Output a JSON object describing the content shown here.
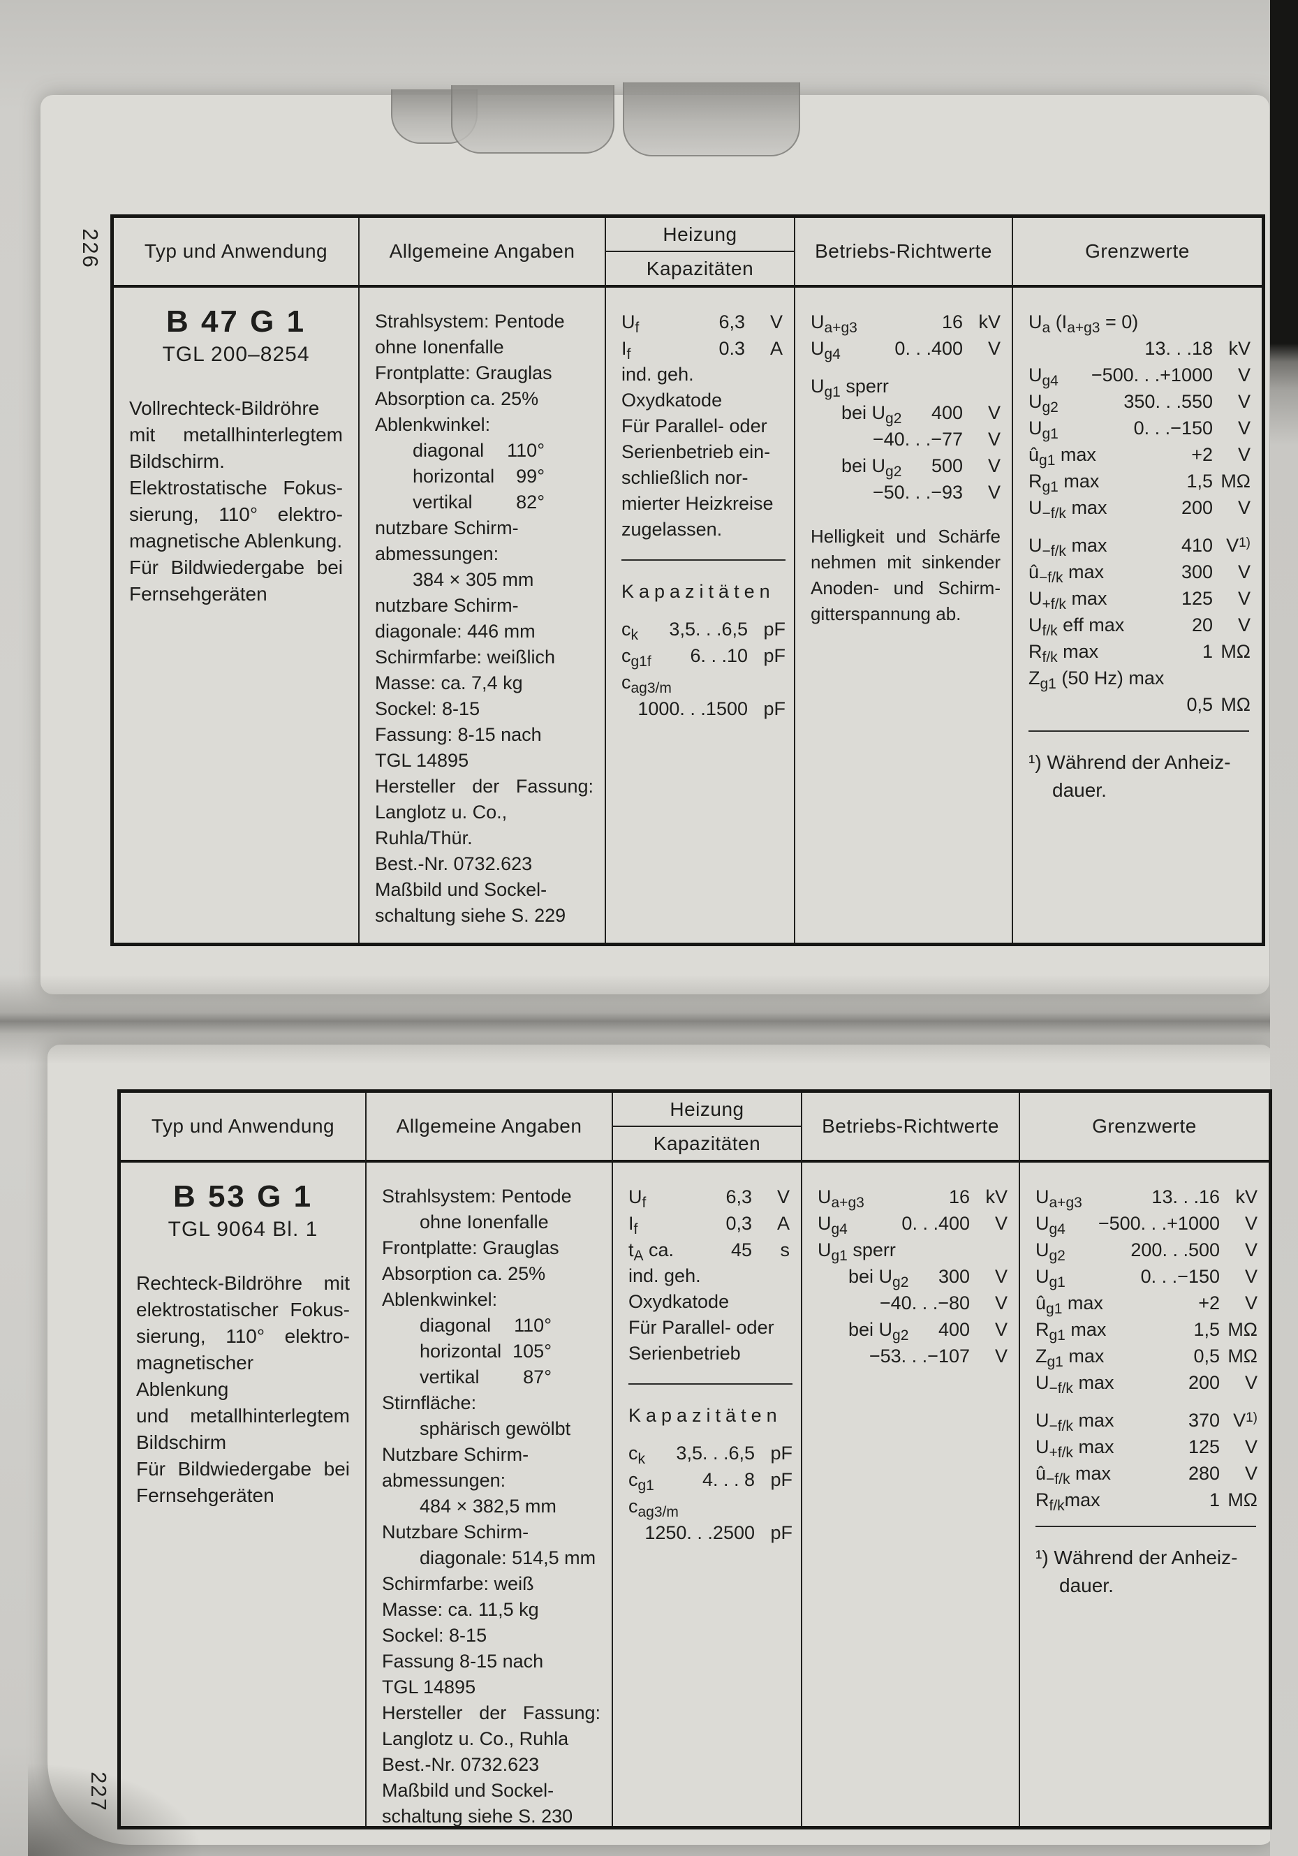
{
  "pages": [
    {
      "page_number": "226",
      "headers": {
        "col1": "Typ und Anwendung",
        "col2": "Allgemeine Angaben",
        "col3_top": "Heizung",
        "col3_bottom": "Kapazitäten",
        "col4": "Betriebs-Richtwerte",
        "col5": "Grenzwerte"
      },
      "col1": {
        "name": "B 47 G 1",
        "standard": "TGL 200–8254",
        "description": [
          {
            "t": "Vollrechteck-Bildröhre",
            "j": 1
          },
          {
            "t": "mit metallhinterlegtem",
            "j": 1
          },
          {
            "t": "Bildschirm."
          },
          {
            "t": "Elektrostatische Fokus-",
            "j": 1
          },
          {
            "t": "sierung, 110° elektro-",
            "j": 1
          },
          {
            "t": "magnetische Ablenkung."
          },
          {
            "t": "Für Bildwiedergabe bei",
            "j": 1
          },
          {
            "t": "Fernsehgeräten"
          }
        ]
      },
      "col2": {
        "lines": [
          {
            "t": "Strahlsystem: Pentode"
          },
          {
            "t": "ohne Ionenfalle"
          },
          {
            "t": "Frontplatte: Grauglas"
          },
          {
            "t": "Absorption ca. 25%"
          },
          {
            "t": "Ablenkwinkel:"
          },
          {
            "t": "diagonal",
            "v": "110°",
            "indent": 1
          },
          {
            "t": "horizontal",
            "v": "99°",
            "indent": 1
          },
          {
            "t": "vertikal",
            "v": "82°",
            "indent": 1
          },
          {
            "t": "nutzbare Schirm-"
          },
          {
            "t": "abmessungen:"
          },
          {
            "t": "384 × 305 mm",
            "indent": 1
          },
          {
            "t": "nutzbare Schirm-"
          },
          {
            "t": "diagonale: 446 mm"
          },
          {
            "t": "Schirmfarbe: weißlich"
          },
          {
            "t": "Masse: ca. 7,4 kg"
          },
          {
            "t": "Sockel: 8-15"
          },
          {
            "t": "Fassung: 8-15 nach"
          },
          {
            "t": "TGL 14895"
          },
          {
            "t": "Hersteller der Fassung:",
            "j": 1
          },
          {
            "t": "Langlotz u. Co.,"
          },
          {
            "t": "Ruhla/Thür."
          },
          {
            "t": "Best.-Nr. 0732.623"
          },
          {
            "t": "Maßbild und Sockel-"
          },
          {
            "t": "schaltung siehe S. 229"
          }
        ]
      },
      "col3": {
        "rows": [
          {
            "l": "U",
            "s": "f",
            "v": "6,3",
            "u": "V"
          },
          {
            "l": "I",
            "s": "f",
            "v": "0.3",
            "u": "A"
          }
        ],
        "lines": [
          {
            "t": "ind. geh."
          },
          {
            "t": "Oxydkatode"
          },
          {
            "t": "Für Parallel- oder"
          },
          {
            "t": "Serienbetrieb ein-"
          },
          {
            "t": "schließlich nor-"
          },
          {
            "t": "mierter Heizkreise"
          },
          {
            "t": "zugelassen."
          }
        ],
        "cap_title": "Kapazitäten",
        "cap_rows": [
          {
            "l": "c",
            "s": "k",
            "v": "3,5. . .6,5",
            "u": "pF"
          },
          {
            "l": "c",
            "s": "g1f",
            "v": "6. . .10",
            "u": "pF"
          },
          {
            "l": "c",
            "s": "ag3/m"
          },
          {
            "v": "1000. . .1500",
            "u": "pF"
          }
        ]
      },
      "col4": {
        "rows": [
          {
            "l": "U",
            "s": "a+g3",
            "v": "16",
            "u": "kV"
          },
          {
            "l": "U",
            "s": "g4",
            "v": "0. . .400",
            "u": "V"
          },
          {
            "l": "U",
            "s": "g1",
            "l2": " sperr",
            "gap": 1
          },
          {
            "l": "bei U",
            "s": "g2",
            "v": "400",
            "u": "V",
            "indent": 1
          },
          {
            "v": "−40. . .−77",
            "u": "V"
          },
          {
            "l": "bei U",
            "s": "g2",
            "v": "500",
            "u": "V",
            "indent": 1
          },
          {
            "v": "−50. . .−93",
            "u": "V"
          }
        ],
        "notes": [
          {
            "t": "Helligkeit und Schärfe",
            "j": 1,
            "gap": 1
          },
          {
            "t": "nehmen mit sinkender",
            "j": 1
          },
          {
            "t": "Anoden- und Schirm-",
            "j": 1
          },
          {
            "t": "gitterspannung ab."
          }
        ]
      },
      "col5": {
        "rows": [
          {
            "l": "U",
            "s": "a",
            "l2": " (I",
            "s2": "a+g3",
            "l3": " = 0)"
          },
          {
            "v": "13. . .18",
            "u": "kV"
          },
          {
            "l": "U",
            "s": "g4",
            "v": "−500. . .+1000",
            "u": "V"
          },
          {
            "l": "U",
            "s": "g2",
            "v": "350. . .550",
            "u": "V"
          },
          {
            "l": "U",
            "s": "g1",
            "v": "0. . .−150",
            "u": "V"
          },
          {
            "l": "û",
            "s": "g1",
            "l2": " max",
            "v": "+2",
            "u": "V"
          },
          {
            "l": "R",
            "s": "g1",
            "l2": " max",
            "v": "1,5",
            "u": "MΩ"
          },
          {
            "l": "U",
            "s": "−f/k",
            "l2": " max",
            "v": "200",
            "u": "V"
          },
          {
            "l": "U",
            "s": "−f/k",
            "l2": " max",
            "v": "410",
            "u": "V",
            "up": "1)",
            "gap": 1
          },
          {
            "l": "û",
            "s": "−f/k",
            "l2": " max",
            "v": "300",
            "u": "V"
          },
          {
            "l": "U",
            "s": "+f/k",
            "l2": " max",
            "v": "125",
            "u": "V"
          },
          {
            "l": "U",
            "s": "f/k",
            "l2": " eff max",
            "v": "20",
            "u": "V"
          },
          {
            "l": "R",
            "s": "f/k",
            "l2": " max",
            "v": "1",
            "u": "MΩ"
          },
          {
            "l": "Z",
            "s": "g1",
            "l2": " (50 Hz) max"
          },
          {
            "v": "0,5",
            "u": "MΩ"
          }
        ],
        "footnote": [
          {
            "t": "¹) Während der Anheiz-"
          },
          {
            "t": "dauer.",
            "indent": 1
          }
        ]
      }
    },
    {
      "page_number": "227",
      "headers": {
        "col1": "Typ und Anwendung",
        "col2": "Allgemeine Angaben",
        "col3_top": "Heizung",
        "col3_bottom": "Kapazitäten",
        "col4": "Betriebs-Richtwerte",
        "col5": "Grenzwerte"
      },
      "col1": {
        "name": "B 53 G 1",
        "standard": "TGL 9064 Bl. 1",
        "description": [
          {
            "t": "Rechteck-Bildröhre mit",
            "j": 1
          },
          {
            "t": "elektrostatischer Fokus-",
            "j": 1
          },
          {
            "t": "sierung, 110° elektro-",
            "j": 1
          },
          {
            "t": "magnetischer Ablenkung",
            "j": 1
          },
          {
            "t": "und metallhinterlegtem",
            "j": 1
          },
          {
            "t": "Bildschirm"
          },
          {
            "t": "Für Bildwiedergabe bei",
            "j": 1
          },
          {
            "t": "Fernsehgeräten"
          }
        ]
      },
      "col2": {
        "lines": [
          {
            "t": "Strahlsystem: Pentode"
          },
          {
            "t": "ohne Ionenfalle",
            "indent": 1
          },
          {
            "t": "Frontplatte: Grauglas"
          },
          {
            "t": "Absorption ca. 25%"
          },
          {
            "t": "Ablenkwinkel:"
          },
          {
            "t": "diagonal",
            "v": "110°",
            "indent": 1
          },
          {
            "t": "horizontal",
            "v": "105°",
            "indent": 1
          },
          {
            "t": "vertikal",
            "v": "87°",
            "indent": 1
          },
          {
            "t": "Stirnfläche:"
          },
          {
            "t": "sphärisch gewölbt",
            "indent": 1
          },
          {
            "t": "Nutzbare Schirm-"
          },
          {
            "t": "abmessungen:"
          },
          {
            "t": "484 × 382,5 mm",
            "indent": 1
          },
          {
            "t": "Nutzbare Schirm-"
          },
          {
            "t": "diagonale: 514,5 mm",
            "indent": 1
          },
          {
            "t": "Schirmfarbe: weiß"
          },
          {
            "t": "Masse: ca. 11,5 kg"
          },
          {
            "t": "Sockel: 8-15"
          },
          {
            "t": "Fassung 8-15 nach"
          },
          {
            "t": "TGL 14895"
          },
          {
            "t": "Hersteller der Fassung:",
            "j": 1
          },
          {
            "t": "Langlotz u. Co., Ruhla"
          },
          {
            "t": "Best.-Nr. 0732.623"
          },
          {
            "t": "Maßbild und Sockel-"
          },
          {
            "t": "schaltung siehe S. 230"
          }
        ]
      },
      "col3": {
        "rows": [
          {
            "l": "U",
            "s": "f",
            "v": "6,3",
            "u": "V"
          },
          {
            "l": "I",
            "s": "f",
            "v": "0,3",
            "u": "A"
          },
          {
            "l": "t",
            "s": "A",
            "l2": " ca.",
            "v": "45",
            "u": "s"
          }
        ],
        "lines": [
          {
            "t": "ind. geh."
          },
          {
            "t": "Oxydkatode"
          },
          {
            "t": "Für Parallel- oder"
          },
          {
            "t": "Serienbetrieb"
          }
        ],
        "cap_title": "Kapazitäten",
        "cap_rows": [
          {
            "l": "c",
            "s": "k",
            "v": "3,5. . .6,5",
            "u": "pF"
          },
          {
            "l": "c",
            "s": "g1",
            "v": "4. . . 8",
            "u": "pF"
          },
          {
            "l": "c",
            "s": "ag3/m"
          },
          {
            "v": "1250. . .2500",
            "u": "pF"
          }
        ]
      },
      "col4": {
        "rows": [
          {
            "l": "U",
            "s": "a+g3",
            "v": "16",
            "u": "kV"
          },
          {
            "l": "U",
            "s": "g4",
            "v": "0. . .400",
            "u": "V"
          },
          {
            "l": "U",
            "s": "g1",
            "l2": " sperr"
          },
          {
            "l": "bei U",
            "s": "g2",
            "v": "300",
            "u": "V",
            "indent": 1
          },
          {
            "v": "−40. . .−80",
            "u": "V"
          },
          {
            "l": "bei U",
            "s": "g2",
            "v": "400",
            "u": "V",
            "indent": 1
          },
          {
            "v": "−53. . .−107",
            "u": "V"
          }
        ],
        "notes": []
      },
      "col5": {
        "rows": [
          {
            "l": "U",
            "s": "a+g3",
            "v": "13. . .16",
            "u": "kV"
          },
          {
            "l": "U",
            "s": "g4",
            "v": "−500. . .+1000",
            "u": "V"
          },
          {
            "l": "U",
            "s": "g2",
            "v": "200. . .500",
            "u": "V"
          },
          {
            "l": "U",
            "s": "g1",
            "v": "0. . .−150",
            "u": "V"
          },
          {
            "l": "û",
            "s": "g1",
            "l2": " max",
            "v": "+2",
            "u": "V"
          },
          {
            "l": "R",
            "s": "g1",
            "l2": " max",
            "v": "1,5",
            "u": "MΩ"
          },
          {
            "l": "Z",
            "s": "g1",
            "l2": " max",
            "v": "0,5",
            "u": "MΩ"
          },
          {
            "l": "U",
            "s": "−f/k",
            "l2": " max",
            "v": "200",
            "u": "V"
          },
          {
            "l": "U",
            "s": "−f/k",
            "l2": " max",
            "v": "370",
            "u": "V",
            "up": "1)",
            "gap": 1
          },
          {
            "l": "U",
            "s": "+f/k",
            "l2": " max",
            "v": "125",
            "u": "V"
          },
          {
            "l": "û",
            "s": "−f/k",
            "l2": " max",
            "v": "280",
            "u": "V"
          },
          {
            "l": "R",
            "s": "f/k",
            "l2": "max",
            "v": "1",
            "u": "MΩ"
          }
        ],
        "footnote": [
          {
            "t": "¹) Während der Anheiz-"
          },
          {
            "t": "dauer.",
            "indent": 1
          }
        ]
      }
    }
  ]
}
